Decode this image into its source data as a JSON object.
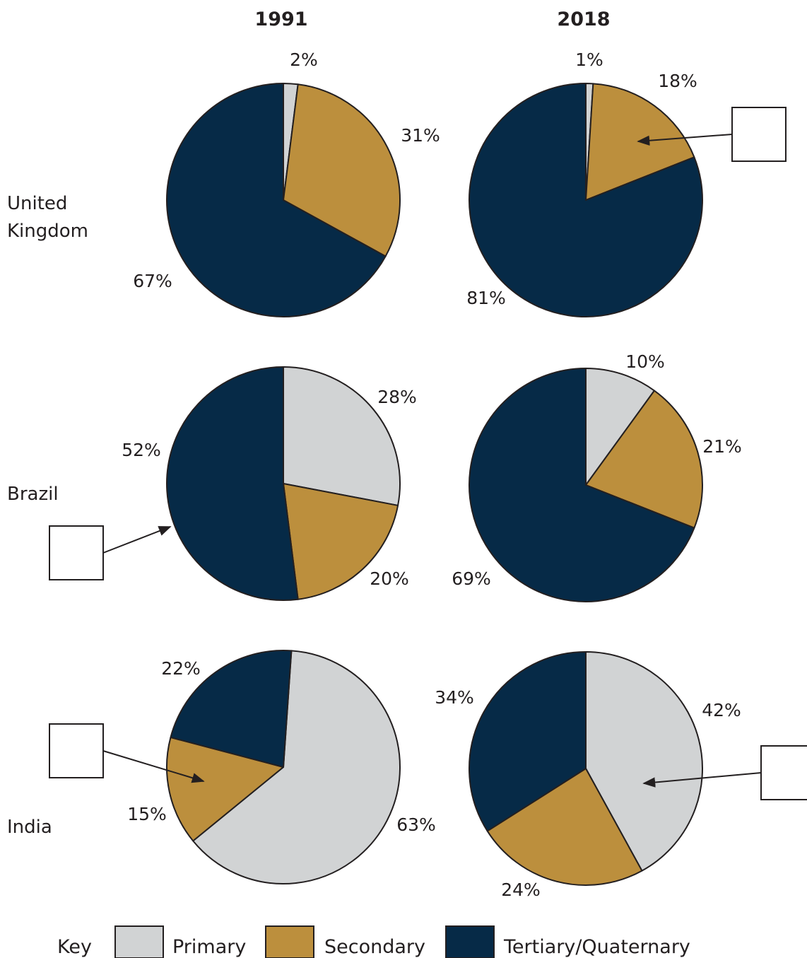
{
  "colors": {
    "primary": "#d1d3d4",
    "secondary": "#bc8f3d",
    "tertiary": "#062a47",
    "outline": "#231f20"
  },
  "legend": {
    "key_label": "Key",
    "items": [
      {
        "label": "Primary",
        "color": "#d1d3d4"
      },
      {
        "label": "Secondary",
        "color": "#bc8f3d"
      },
      {
        "label": "Tertiary/Quaternary",
        "color": "#062a47"
      }
    ]
  },
  "years": [
    "1991",
    "2018"
  ],
  "countries": [
    {
      "lines": [
        "United",
        "Kingdom"
      ]
    },
    {
      "lines": [
        "Brazil"
      ]
    },
    {
      "lines": [
        "India"
      ]
    }
  ],
  "chart_data": [
    {
      "type": "pie",
      "country": "United Kingdom",
      "year": "1991",
      "categories": [
        "Primary",
        "Secondary",
        "Tertiary/Quaternary"
      ],
      "values": [
        2,
        31,
        67
      ],
      "labels": [
        "2%",
        "31%",
        "67%"
      ]
    },
    {
      "type": "pie",
      "country": "United Kingdom",
      "year": "2018",
      "categories": [
        "Primary",
        "Secondary",
        "Tertiary/Quaternary"
      ],
      "values": [
        1,
        18,
        81
      ],
      "labels": [
        "1%",
        "18%",
        "81%"
      ],
      "blank_label_box": "Secondary"
    },
    {
      "type": "pie",
      "country": "Brazil",
      "year": "1991",
      "categories": [
        "Primary",
        "Secondary",
        "Tertiary/Quaternary"
      ],
      "values": [
        28,
        20,
        52
      ],
      "labels": [
        "28%",
        "20%",
        "52%"
      ],
      "blank_label_box": "Tertiary/Quaternary"
    },
    {
      "type": "pie",
      "country": "Brazil",
      "year": "2018",
      "categories": [
        "Primary",
        "Secondary",
        "Tertiary/Quaternary"
      ],
      "values": [
        10,
        21,
        69
      ],
      "labels": [
        "10%",
        "21%",
        "69%"
      ]
    },
    {
      "type": "pie",
      "country": "India",
      "year": "1991",
      "categories": [
        "Primary",
        "Secondary",
        "Tertiary/Quaternary"
      ],
      "values": [
        63,
        15,
        22
      ],
      "labels": [
        "63%",
        "15%",
        "22%"
      ],
      "blank_label_box": "Secondary"
    },
    {
      "type": "pie",
      "country": "India",
      "year": "2018",
      "categories": [
        "Primary",
        "Secondary",
        "Tertiary/Quaternary"
      ],
      "values": [
        42,
        24,
        34
      ],
      "labels": [
        "42%",
        "24%",
        "34%"
      ],
      "blank_label_box": "Primary"
    }
  ]
}
